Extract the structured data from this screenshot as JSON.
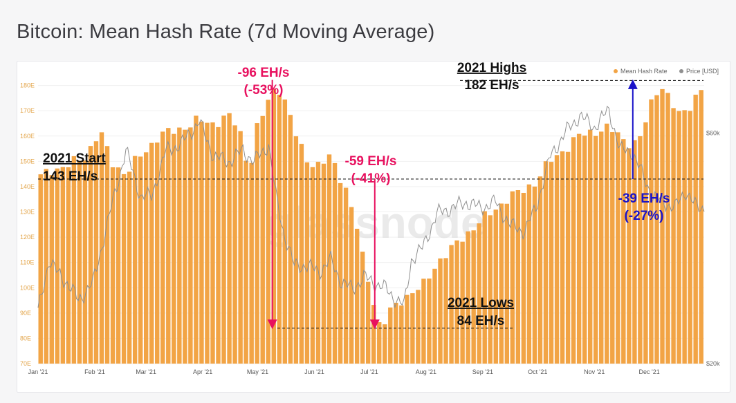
{
  "page": {
    "title": "Bitcoin: Mean Hash Rate (7d Moving Average)",
    "watermark": "glassnode"
  },
  "colors": {
    "bar": "#f2a445",
    "price_line": "#8f8f8f",
    "red": "#e8115f",
    "blue": "#1a13c9",
    "guide": "#111111"
  },
  "chart_data": {
    "type": "bar",
    "title": "Bitcoin: Mean Hash Rate (7d Moving Average)",
    "ylim": [
      70,
      184
    ],
    "y_ticks": [
      70,
      80,
      90,
      100,
      110,
      120,
      130,
      140,
      150,
      160,
      170,
      180
    ],
    "y_tick_labels": [
      "70E",
      "80E",
      "90E",
      "100E",
      "110E",
      "120E",
      "130E",
      "140E",
      "150E",
      "160E",
      "170E",
      "180E"
    ],
    "x_labels": [
      "Jan '21",
      "Feb '21",
      "Mar '21",
      "Apr '21",
      "May '21",
      "Jun '21",
      "Jul '21",
      "Aug '21",
      "Sep '21",
      "Oct '21",
      "Nov '21",
      "Dec '21"
    ],
    "x_label_days": [
      0,
      31,
      59,
      90,
      120,
      151,
      181,
      212,
      243,
      273,
      304,
      334
    ],
    "right_axis": {
      "labels": [
        "$60k",
        "$20k"
      ],
      "values": [
        60000,
        20000
      ],
      "price_range": [
        20000,
        70000
      ]
    },
    "legend": [
      {
        "label": "Mean Hash Rate",
        "color": "#f2a445"
      },
      {
        "label": "Price [USD]",
        "color": "#8f8f8f"
      }
    ],
    "series": [
      {
        "name": "Mean Hash Rate",
        "unit": "EH/s",
        "bar_count": 120,
        "knots": [
          [
            0,
            143
          ],
          [
            8,
            147
          ],
          [
            16,
            148
          ],
          [
            26,
            152
          ],
          [
            34,
            162
          ],
          [
            40,
            150
          ],
          [
            48,
            145
          ],
          [
            56,
            152
          ],
          [
            66,
            160
          ],
          [
            78,
            163
          ],
          [
            88,
            166
          ],
          [
            96,
            165
          ],
          [
            104,
            168
          ],
          [
            110,
            163
          ],
          [
            116,
            145
          ],
          [
            118,
            160
          ],
          [
            124,
            170
          ],
          [
            128,
            178
          ],
          [
            132,
            179
          ],
          [
            136,
            172
          ],
          [
            142,
            158
          ],
          [
            148,
            150
          ],
          [
            154,
            148
          ],
          [
            160,
            152
          ],
          [
            168,
            140
          ],
          [
            174,
            125
          ],
          [
            178,
            110
          ],
          [
            182,
            100
          ],
          [
            186,
            86
          ],
          [
            188,
            84
          ],
          [
            192,
            90
          ],
          [
            198,
            95
          ],
          [
            204,
            98
          ],
          [
            210,
            100
          ],
          [
            218,
            110
          ],
          [
            226,
            115
          ],
          [
            232,
            120
          ],
          [
            240,
            125
          ],
          [
            248,
            130
          ],
          [
            256,
            135
          ],
          [
            264,
            138
          ],
          [
            272,
            142
          ],
          [
            280,
            150
          ],
          [
            288,
            155
          ],
          [
            296,
            160
          ],
          [
            304,
            162
          ],
          [
            312,
            163
          ],
          [
            318,
            160
          ],
          [
            322,
            158
          ],
          [
            326,
            157
          ],
          [
            330,
            160
          ],
          [
            336,
            175
          ],
          [
            340,
            181
          ],
          [
            344,
            176
          ],
          [
            350,
            168
          ],
          [
            356,
            172
          ],
          [
            362,
            178
          ],
          [
            364,
            179
          ]
        ]
      },
      {
        "name": "Price [USD]",
        "unit": "USD",
        "knots": [
          [
            0,
            29000
          ],
          [
            6,
            38000
          ],
          [
            10,
            36000
          ],
          [
            16,
            34000
          ],
          [
            22,
            31000
          ],
          [
            30,
            34000
          ],
          [
            40,
            47000
          ],
          [
            48,
            57000
          ],
          [
            56,
            49000
          ],
          [
            62,
            49000
          ],
          [
            70,
            57000
          ],
          [
            78,
            58000
          ],
          [
            88,
            62000
          ],
          [
            96,
            56000
          ],
          [
            104,
            55000
          ],
          [
            112,
            57000
          ],
          [
            118,
            55000
          ],
          [
            126,
            58000
          ],
          [
            130,
            49000
          ],
          [
            134,
            43000
          ],
          [
            140,
            37000
          ],
          [
            146,
            37000
          ],
          [
            154,
            36000
          ],
          [
            160,
            38000
          ],
          [
            166,
            34000
          ],
          [
            172,
            33000
          ],
          [
            178,
            35000
          ],
          [
            184,
            34000
          ],
          [
            190,
            33000
          ],
          [
            196,
            31000
          ],
          [
            200,
            30000
          ],
          [
            204,
            38000
          ],
          [
            210,
            40000
          ],
          [
            218,
            46000
          ],
          [
            226,
            47000
          ],
          [
            234,
            48000
          ],
          [
            242,
            47000
          ],
          [
            250,
            48000
          ],
          [
            258,
            44000
          ],
          [
            266,
            43000
          ],
          [
            272,
            47000
          ],
          [
            280,
            56000
          ],
          [
            288,
            60000
          ],
          [
            296,
            63000
          ],
          [
            304,
            61000
          ],
          [
            312,
            64000
          ],
          [
            318,
            57000
          ],
          [
            324,
            57000
          ],
          [
            330,
            53000
          ],
          [
            336,
            49000
          ],
          [
            342,
            48000
          ],
          [
            348,
            47000
          ],
          [
            354,
            50000
          ],
          [
            360,
            47000
          ],
          [
            364,
            47000
          ]
        ]
      }
    ],
    "annotations": {
      "start": {
        "line1": "2021 Start",
        "line2": "143 EH/s",
        "value": 143
      },
      "highs": {
        "line1": "2021 Highs",
        "line2": "182 EH/s",
        "value": 182
      },
      "lows": {
        "line1": "2021 Lows",
        "line2": "84 EH/s",
        "value": 84
      },
      "drop_may": {
        "line1": "-96 EH/s",
        "line2": "(-53%)",
        "day": 128,
        "from": 180,
        "to": 84
      },
      "drop_jun": {
        "line1": "-59 EH/s",
        "line2": "(-41%)",
        "day": 184,
        "from": 143,
        "to": 84
      },
      "drop_nov": {
        "line1": "-39 EH/s",
        "line2": "(-27%)",
        "day": 325,
        "from": 143,
        "to": 182
      }
    }
  }
}
